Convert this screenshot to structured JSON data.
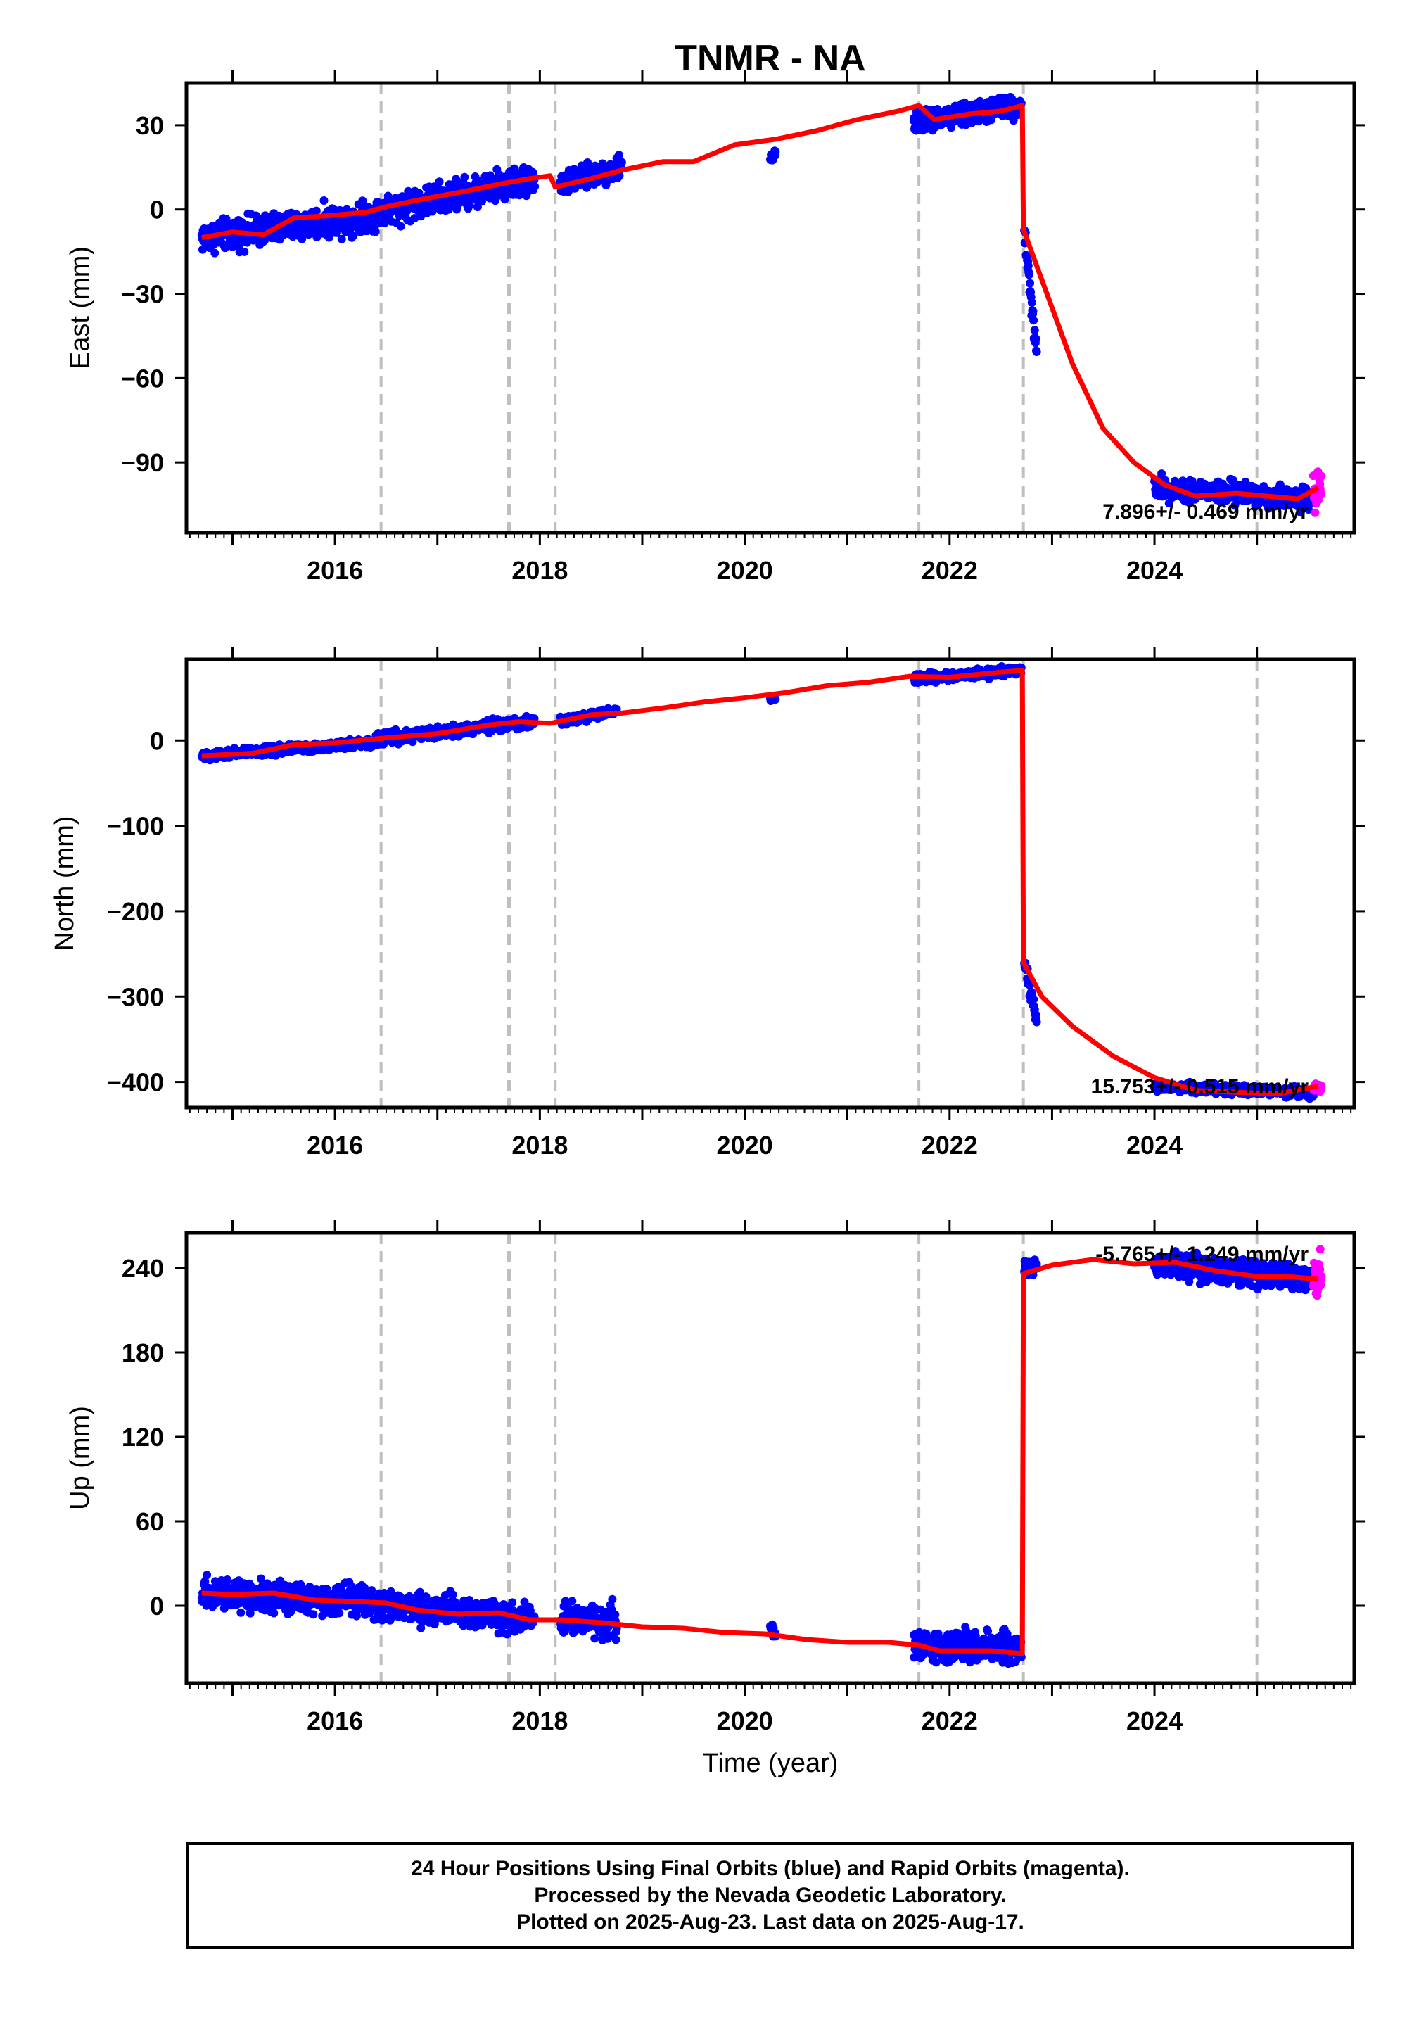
{
  "title": "TNMR - NA",
  "xlabel": "Time (year)",
  "colors": {
    "final_orbits": "#0000ff",
    "rapid_orbits": "#ff00ff",
    "model": "#ff0000",
    "event_lines": "#bfbfbf"
  },
  "footer": {
    "line1": "24 Hour Positions Using Final Orbits (blue) and Rapid Orbits (magenta).",
    "line2": "Processed by the Nevada Geodetic Laboratory.",
    "line3": "Plotted on 2025-Aug-23. Last data on 2025-Aug-17."
  },
  "chart_data": [
    {
      "type": "scatter",
      "name": "east",
      "ylabel": "East (mm)",
      "xlim": [
        2014.55,
        2025.95
      ],
      "ylim": [
        -115,
        45
      ],
      "yticks": [
        30,
        0,
        -30,
        -60,
        -90
      ],
      "xticks": [
        2016,
        2018,
        2020,
        2022,
        2024
      ],
      "rate": "7.896+/- 0.469 mm/yr",
      "event_years": [
        2016.45,
        2017.7,
        2018.15,
        2021.7,
        2022.72,
        2025.0
      ],
      "model": [
        [
          2014.7,
          -10
        ],
        [
          2015.0,
          -8
        ],
        [
          2015.3,
          -9
        ],
        [
          2015.6,
          -3
        ],
        [
          2016.0,
          -2
        ],
        [
          2016.3,
          -1
        ],
        [
          2016.5,
          1
        ],
        [
          2016.9,
          4
        ],
        [
          2017.2,
          6
        ],
        [
          2017.6,
          9
        ],
        [
          2017.9,
          11
        ],
        [
          2018.1,
          12
        ],
        [
          2018.15,
          8
        ],
        [
          2018.5,
          11
        ],
        [
          2018.8,
          14
        ],
        [
          2019.2,
          17
        ],
        [
          2019.5,
          17
        ],
        [
          2019.9,
          23
        ],
        [
          2020.3,
          25
        ],
        [
          2020.7,
          28
        ],
        [
          2021.1,
          32
        ],
        [
          2021.5,
          35
        ],
        [
          2021.7,
          37
        ],
        [
          2021.85,
          32
        ],
        [
          2022.2,
          34
        ],
        [
          2022.5,
          35
        ],
        [
          2022.71,
          37
        ],
        [
          2022.72,
          -7
        ],
        [
          2022.9,
          -25
        ],
        [
          2023.2,
          -55
        ],
        [
          2023.5,
          -78
        ],
        [
          2023.8,
          -90
        ],
        [
          2024.1,
          -98
        ],
        [
          2024.4,
          -102
        ],
        [
          2024.8,
          -101
        ],
        [
          2025.1,
          -102
        ],
        [
          2025.4,
          -103
        ],
        [
          2025.6,
          -99
        ]
      ],
      "final_segments": [
        {
          "start": 2014.7,
          "end": 2016.4,
          "y0": -10,
          "y1": -2,
          "spread": 4
        },
        {
          "start": 2016.4,
          "end": 2017.95,
          "y0": -1,
          "y1": 11,
          "spread": 4
        },
        {
          "start": 2018.2,
          "end": 2018.8,
          "y0": 9,
          "y1": 15,
          "spread": 3
        },
        {
          "start": 2020.25,
          "end": 2020.3,
          "y0": 18,
          "y1": 20,
          "spread": 1.5
        },
        {
          "start": 2021.65,
          "end": 2022.7,
          "y0": 31,
          "y1": 37,
          "spread": 3
        },
        {
          "start": 2022.73,
          "end": 2022.85,
          "y0": -8,
          "y1": -52,
          "spread": 3
        },
        {
          "start": 2024.0,
          "end": 2025.55,
          "y0": -99,
          "y1": -103,
          "spread": 3
        }
      ],
      "rapid_segments": [
        {
          "start": 2025.55,
          "end": 2025.63,
          "y0": -100,
          "y1": -101,
          "spread": 5
        }
      ]
    },
    {
      "type": "scatter",
      "name": "north",
      "ylabel": "North (mm)",
      "xlim": [
        2014.55,
        2025.95
      ],
      "ylim": [
        -430,
        95
      ],
      "yticks": [
        0,
        -100,
        -200,
        -300,
        -400
      ],
      "xticks": [
        2016,
        2018,
        2020,
        2022,
        2024
      ],
      "rate": "15.753+/- 0.515 mm/yr",
      "event_years": [
        2016.45,
        2017.7,
        2018.15,
        2021.7,
        2022.72,
        2025.0
      ],
      "model": [
        [
          2014.7,
          -18
        ],
        [
          2015.2,
          -15
        ],
        [
          2015.6,
          -5
        ],
        [
          2016.0,
          -3
        ],
        [
          2016.5,
          3
        ],
        [
          2017.0,
          8
        ],
        [
          2017.5,
          18
        ],
        [
          2017.8,
          22
        ],
        [
          2018.1,
          20
        ],
        [
          2018.5,
          30
        ],
        [
          2018.8,
          32
        ],
        [
          2019.2,
          38
        ],
        [
          2019.6,
          45
        ],
        [
          2020.0,
          50
        ],
        [
          2020.4,
          56
        ],
        [
          2020.8,
          64
        ],
        [
          2021.2,
          68
        ],
        [
          2021.6,
          75
        ],
        [
          2022.0,
          74
        ],
        [
          2022.5,
          80
        ],
        [
          2022.71,
          82
        ],
        [
          2022.72,
          -260
        ],
        [
          2022.9,
          -300
        ],
        [
          2023.2,
          -335
        ],
        [
          2023.6,
          -370
        ],
        [
          2024.0,
          -395
        ],
        [
          2024.4,
          -410
        ],
        [
          2024.8,
          -412
        ],
        [
          2025.2,
          -414
        ],
        [
          2025.6,
          -405
        ]
      ],
      "final_segments": [
        {
          "start": 2014.7,
          "end": 2016.4,
          "y0": -18,
          "y1": -2,
          "spread": 4
        },
        {
          "start": 2016.4,
          "end": 2017.95,
          "y0": 2,
          "y1": 22,
          "spread": 5
        },
        {
          "start": 2018.2,
          "end": 2018.75,
          "y0": 22,
          "y1": 35,
          "spread": 4
        },
        {
          "start": 2020.25,
          "end": 2020.3,
          "y0": 48,
          "y1": 50,
          "spread": 2
        },
        {
          "start": 2021.65,
          "end": 2022.7,
          "y0": 72,
          "y1": 82,
          "spread": 4
        },
        {
          "start": 2022.73,
          "end": 2022.85,
          "y0": -260,
          "y1": -330,
          "spread": 6
        },
        {
          "start": 2024.0,
          "end": 2025.55,
          "y0": -405,
          "y1": -413,
          "spread": 4
        }
      ],
      "rapid_segments": [
        {
          "start": 2025.55,
          "end": 2025.63,
          "y0": -408,
          "y1": -406,
          "spread": 4
        }
      ]
    },
    {
      "type": "scatter",
      "name": "up",
      "ylabel": "Up (mm)",
      "xlim": [
        2014.55,
        2025.95
      ],
      "ylim": [
        -55,
        265
      ],
      "yticks": [
        240,
        180,
        120,
        60,
        0
      ],
      "xticks": [
        2016,
        2018,
        2020,
        2022,
        2024
      ],
      "rate": "-5.765+/- 1.249 mm/yr",
      "event_years": [
        2016.45,
        2017.7,
        2018.15,
        2021.7,
        2022.72,
        2025.0
      ],
      "model": [
        [
          2014.7,
          9
        ],
        [
          2015.0,
          8
        ],
        [
          2015.4,
          9
        ],
        [
          2015.8,
          4
        ],
        [
          2016.2,
          3
        ],
        [
          2016.5,
          2
        ],
        [
          2016.8,
          -3
        ],
        [
          2017.2,
          -6
        ],
        [
          2017.6,
          -5
        ],
        [
          2017.9,
          -10
        ],
        [
          2018.2,
          -10
        ],
        [
          2018.6,
          -12
        ],
        [
          2019.0,
          -15
        ],
        [
          2019.4,
          -16
        ],
        [
          2019.8,
          -19
        ],
        [
          2020.2,
          -20
        ],
        [
          2020.6,
          -24
        ],
        [
          2021.0,
          -26
        ],
        [
          2021.4,
          -26
        ],
        [
          2021.7,
          -28
        ],
        [
          2021.9,
          -32
        ],
        [
          2022.4,
          -32
        ],
        [
          2022.71,
          -34
        ],
        [
          2022.72,
          236
        ],
        [
          2023.0,
          242
        ],
        [
          2023.4,
          246
        ],
        [
          2023.8,
          243
        ],
        [
          2024.2,
          244
        ],
        [
          2024.6,
          238
        ],
        [
          2025.0,
          234
        ],
        [
          2025.3,
          234
        ],
        [
          2025.6,
          232
        ]
      ],
      "final_segments": [
        {
          "start": 2014.7,
          "end": 2016.4,
          "y0": 9,
          "y1": 3,
          "spread": 8
        },
        {
          "start": 2016.4,
          "end": 2017.95,
          "y0": 2,
          "y1": -10,
          "spread": 8
        },
        {
          "start": 2018.2,
          "end": 2018.75,
          "y0": -10,
          "y1": -12,
          "spread": 9
        },
        {
          "start": 2020.25,
          "end": 2020.3,
          "y0": -15,
          "y1": -20,
          "spread": 3
        },
        {
          "start": 2021.65,
          "end": 2022.7,
          "y0": -28,
          "y1": -30,
          "spread": 8
        },
        {
          "start": 2022.73,
          "end": 2022.85,
          "y0": 238,
          "y1": 242,
          "spread": 5
        },
        {
          "start": 2024.0,
          "end": 2025.55,
          "y0": 243,
          "y1": 232,
          "spread": 7
        }
      ],
      "rapid_segments": [
        {
          "start": 2025.55,
          "end": 2025.63,
          "y0": 236,
          "y1": 232,
          "spread": 12
        }
      ]
    }
  ]
}
